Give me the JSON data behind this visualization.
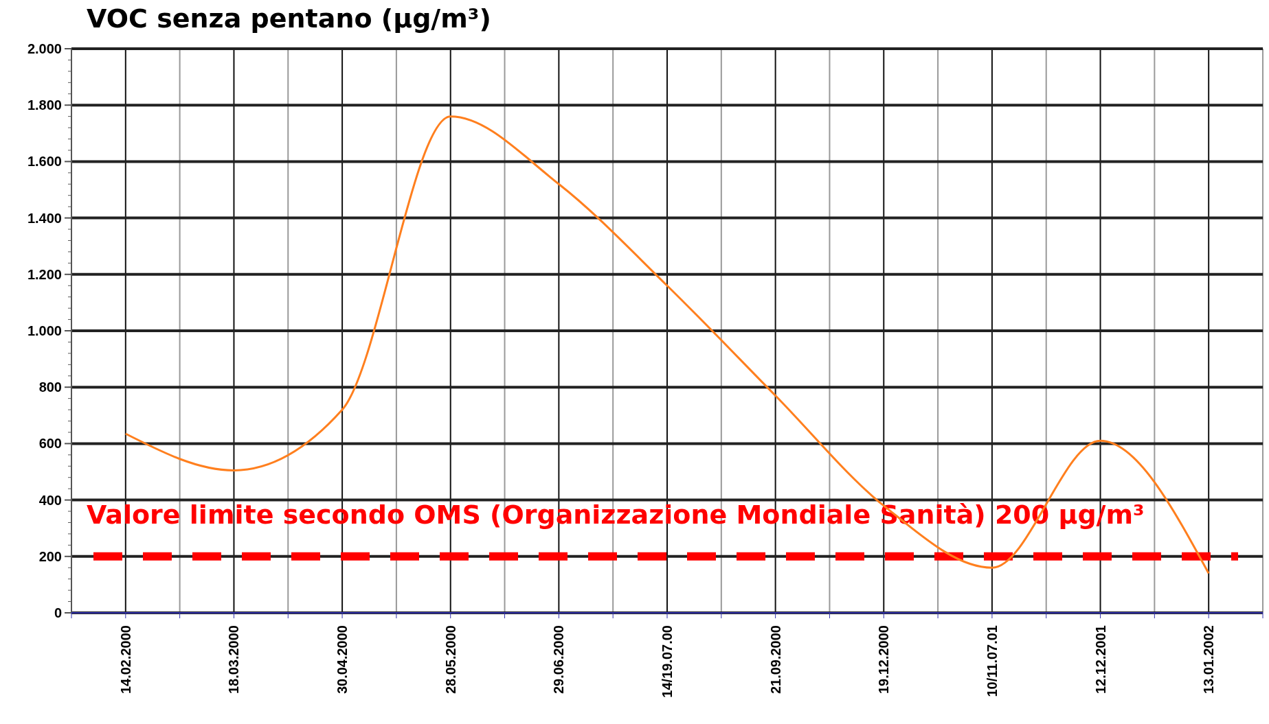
{
  "chart_data": {
    "type": "line",
    "title": "VOC senza pentano (µg/m³)",
    "categories": [
      "14.02.2000",
      "18.03.2000",
      "30.04.2000",
      "28.05.2000",
      "29.06.2000",
      "14/19.07.00",
      "21.09.2000",
      "19.12.2000",
      "10/11.07.01",
      "12.12.2001",
      "13.01.2002"
    ],
    "series": [
      {
        "color": "#ff7f1e",
        "values": [
          635,
          505,
          720,
          1760,
          1520,
          1160,
          770,
          380,
          160,
          610,
          140
        ]
      }
    ],
    "ylim": [
      0,
      2000
    ],
    "yticks": [
      0,
      200,
      400,
      600,
      800,
      {
        "value": 1000,
        "label": "1.000"
      },
      {
        "value": 1200,
        "label": "1.200"
      },
      {
        "value": 1400,
        "label": "1.400"
      },
      {
        "value": 1600,
        "label": "1.600"
      },
      {
        "value": 1800,
        "label": "1.800"
      },
      {
        "value": 2000,
        "label": "2.000"
      }
    ],
    "ref_lines": [
      {
        "axis": "y",
        "value": 200,
        "label": "Valore limite secondo OMS (Organizzazione Mondiale Sanità) 200 µg/m³",
        "color": "#ff0000",
        "line_style": "dashed"
      }
    ],
    "grid": true,
    "marker": "none",
    "line_style": "solid"
  }
}
